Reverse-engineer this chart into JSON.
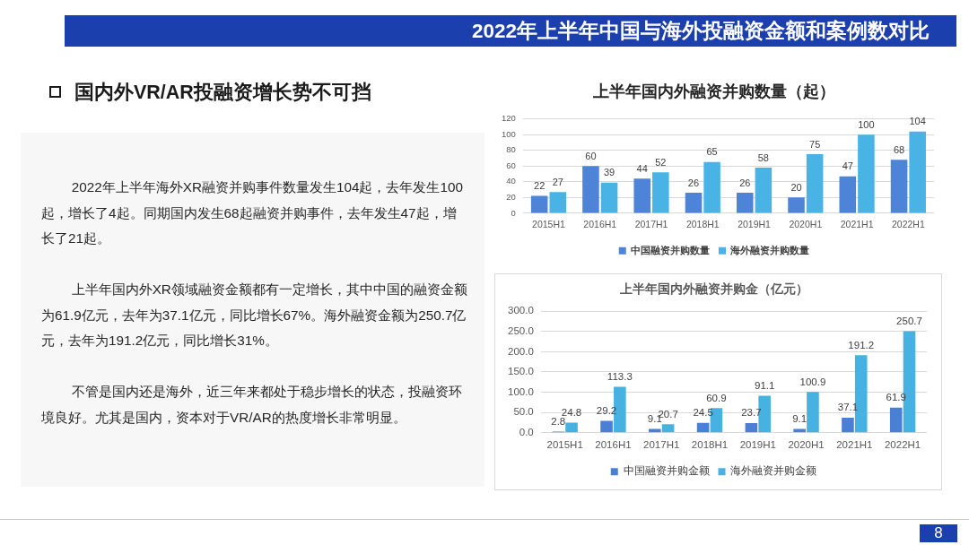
{
  "chart_data": [
    {
      "type": "other",
      "title": "2022年上半年中国与海外投融资金额和案例数对比",
      "subtitle": "国内外VR/AR投融资增长势不可挡",
      "annotations": [
        "2022年上半年海外XR融资并购事件数量发生104起，去年发生100起，增长了4起。同期国内发生68起融资并购事件，去年发生47起，增长了21起。",
        "上半年国内外XR领域融资金额都有一定增长，其中中国的融资金额为61.9亿元，去年为37.1亿元，同比增长67%。海外融资金额为250.7亿元，去年为191.2亿元，同比增长31%。",
        "不管是国内还是海外，近三年来都处于稳步增长的状态，投融资环境良好。尤其是国内，资本对于VR/AR的热度增长非常明显。",
        "8"
      ]
    },
    {
      "type": "bar",
      "title": "上半年国内外融资并购数量（起）",
      "categories": [
        "2015H1",
        "2016H1",
        "2017H1",
        "2018H1",
        "2019H1",
        "2020H1",
        "2021H1",
        "2022H1"
      ],
      "series": [
        {
          "name": "中国融资并购数量",
          "color": "#4d84d8",
          "values": [
            22,
            60,
            44,
            26,
            26,
            20,
            47,
            68
          ]
        },
        {
          "name": "海外融资并购数量",
          "color": "#4ab3e5",
          "values": [
            27,
            39,
            52,
            65,
            58,
            75,
            100,
            104
          ]
        }
      ],
      "ylim": [
        0,
        120
      ],
      "yticks": [
        0,
        20,
        40,
        60,
        80,
        100,
        120
      ],
      "grid": "y",
      "legend": "bottom",
      "data_labels": true
    },
    {
      "type": "bar",
      "title": "上半年国内外融资并购金（亿元）",
      "categories": [
        "2015H1",
        "2016H1",
        "2017H1",
        "2018H1",
        "2019H1",
        "2020H1",
        "2021H1",
        "2022H1"
      ],
      "series": [
        {
          "name": "中国融资并购金额",
          "color": "#4a7fd6",
          "values": [
            2.8,
            29.2,
            9.1,
            24.5,
            23.7,
            9.1,
            37.1,
            61.9
          ]
        },
        {
          "name": "海外融资并购金额",
          "color": "#47b1e2",
          "values": [
            24.8,
            113.3,
            20.7,
            60.9,
            91.1,
            100.9,
            191.2,
            250.7
          ]
        }
      ],
      "ylim": [
        0,
        300
      ],
      "yticks": [
        {
          "value": 0,
          "label": "0.0"
        },
        {
          "value": 50,
          "label": "50.0"
        },
        {
          "value": 100,
          "label": "100.0"
        },
        {
          "value": 150,
          "label": "150.0"
        },
        {
          "value": 200,
          "label": "200.0"
        },
        {
          "value": 250,
          "label": "250.0"
        },
        {
          "value": 300,
          "label": "300.0"
        }
      ],
      "grid": "y",
      "legend": "bottom",
      "data_labels": true
    }
  ]
}
